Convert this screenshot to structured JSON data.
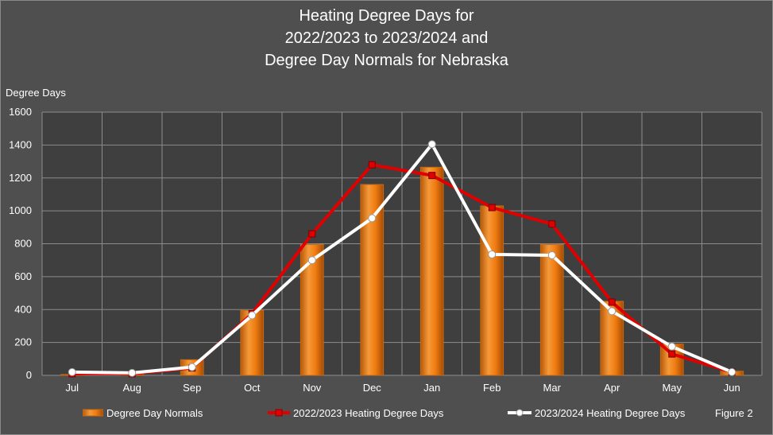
{
  "chart_data": {
    "type": "bar",
    "title_lines": [
      "Heating Degree Days for",
      "2022/2023 to 2023/2024 and",
      "Degree Day Normals for Nebraska"
    ],
    "ylabel": "Degree Days",
    "ylim": [
      0,
      1600
    ],
    "yticks": [
      0,
      200,
      400,
      600,
      800,
      1000,
      1200,
      1400,
      1600
    ],
    "categories": [
      "Jul",
      "Aug",
      "Sep",
      "Oct",
      "Nov",
      "Dec",
      "Jan",
      "Feb",
      "Mar",
      "Apr",
      "May",
      "Jun"
    ],
    "grid": true,
    "legend_position": "bottom",
    "series": [
      {
        "name": "Degree Day Normals",
        "type": "bar",
        "color": "#f07c10",
        "values": [
          5,
          10,
          95,
          395,
          795,
          1160,
          1265,
          1030,
          795,
          450,
          190,
          25
        ]
      },
      {
        "name": "2022/2023 Heating Degree Days",
        "type": "line",
        "color": "#e00000",
        "marker": "square",
        "values": [
          10,
          10,
          45,
          375,
          860,
          1280,
          1215,
          1020,
          920,
          445,
          130,
          20
        ]
      },
      {
        "name": "2023/2024 Heating Degree Days",
        "type": "line",
        "color": "#ffffff",
        "marker": "circle",
        "values": [
          20,
          15,
          50,
          365,
          700,
          955,
          1405,
          735,
          730,
          390,
          175,
          20
        ]
      }
    ],
    "annotation": "Figure 2"
  }
}
